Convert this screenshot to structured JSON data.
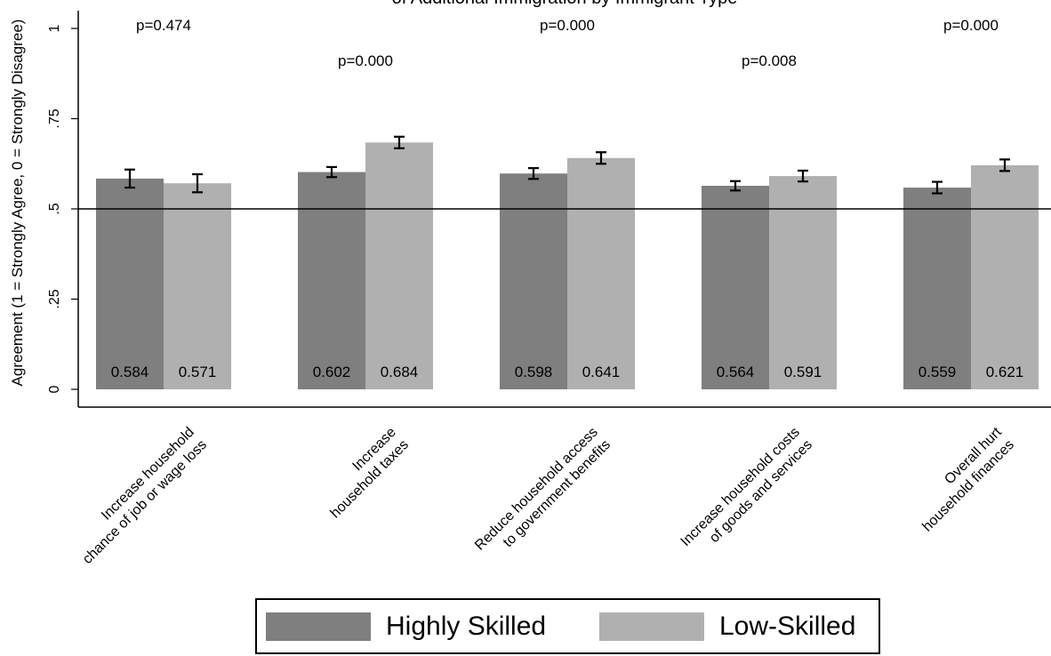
{
  "chart_data": {
    "type": "bar",
    "title": "of Additional Immigration by Immigrant Type",
    "ylabel": "Agreement (1 = Strongly Agree, 0 = Strongly Disagree)",
    "xlabel": "",
    "ylim": [
      0,
      1
    ],
    "yticks": [
      0,
      0.25,
      0.5,
      0.75,
      1
    ],
    "ytick_labels": [
      "0",
      ".25",
      ".5",
      ".75",
      "1"
    ],
    "reference_line": 0.5,
    "grid": false,
    "legend_position": "bottom",
    "categories": [
      [
        "Increase household",
        "chance of job or wage loss"
      ],
      [
        "Increase",
        "household taxes"
      ],
      [
        "Reduce household access",
        "to government benefits"
      ],
      [
        "Increase household costs",
        "of goods and services"
      ],
      [
        "Overall hurt",
        "household finances"
      ]
    ],
    "p_values": [
      "p=0.474",
      "p=0.000",
      "p=0.000",
      "p=0.008",
      "p=0.000"
    ],
    "series": [
      {
        "name": "Highly Skilled",
        "color": "#7f7f7f",
        "values": [
          0.584,
          0.602,
          0.598,
          0.564,
          0.559
        ],
        "value_labels": [
          "0.584",
          "0.602",
          "0.598",
          "0.564",
          "0.559"
        ],
        "error_low": [
          0.559,
          0.588,
          0.583,
          0.551,
          0.543
        ],
        "error_high": [
          0.609,
          0.616,
          0.613,
          0.577,
          0.575
        ]
      },
      {
        "name": "Low-Skilled",
        "color": "#b0b0b0",
        "values": [
          0.571,
          0.684,
          0.641,
          0.591,
          0.621
        ],
        "value_labels": [
          "0.571",
          "0.684",
          "0.641",
          "0.591",
          "0.621"
        ],
        "error_low": [
          0.546,
          0.668,
          0.625,
          0.576,
          0.605
        ],
        "error_high": [
          0.596,
          0.7,
          0.657,
          0.606,
          0.637
        ]
      }
    ]
  }
}
